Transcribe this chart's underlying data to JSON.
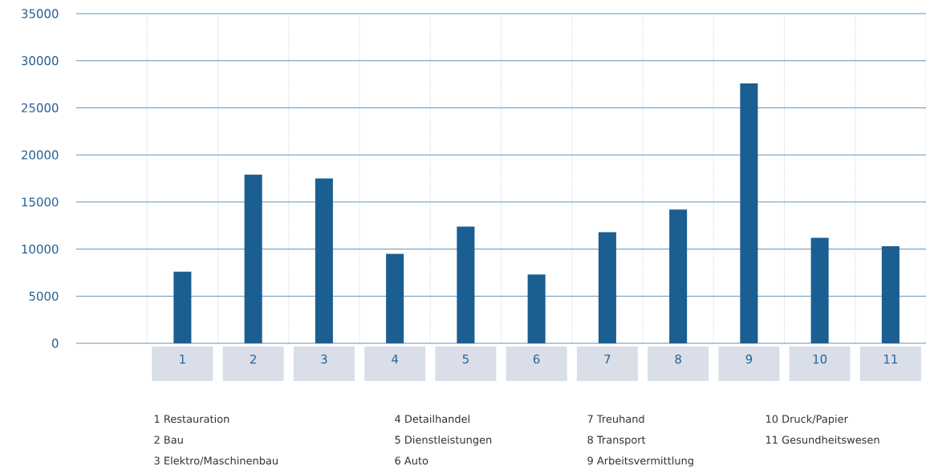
{
  "chart_data": {
    "type": "bar",
    "categories": [
      "1",
      "2",
      "3",
      "4",
      "5",
      "6",
      "7",
      "8",
      "9",
      "10",
      "11"
    ],
    "values": [
      7600,
      17900,
      17500,
      9500,
      12400,
      7300,
      11800,
      14200,
      27600,
      11200,
      10300
    ],
    "color": "#1b5e91",
    "ylim": [
      0,
      35000
    ],
    "yticks": [
      0,
      5000,
      10000,
      15000,
      20000,
      25000,
      30000,
      35000
    ],
    "grid": true,
    "annotations": [
      "1 Restauration",
      "2 Bau",
      "3 Elektro/Maschinenbau",
      "4 Detailhandel",
      "5 Dienstleistungen",
      "6 Auto",
      "7 Treuhand",
      "8 Transport",
      "9 Arbeitsvermittlung",
      "10 Druck/Papier",
      "11 Gesundheitswesen"
    ]
  }
}
